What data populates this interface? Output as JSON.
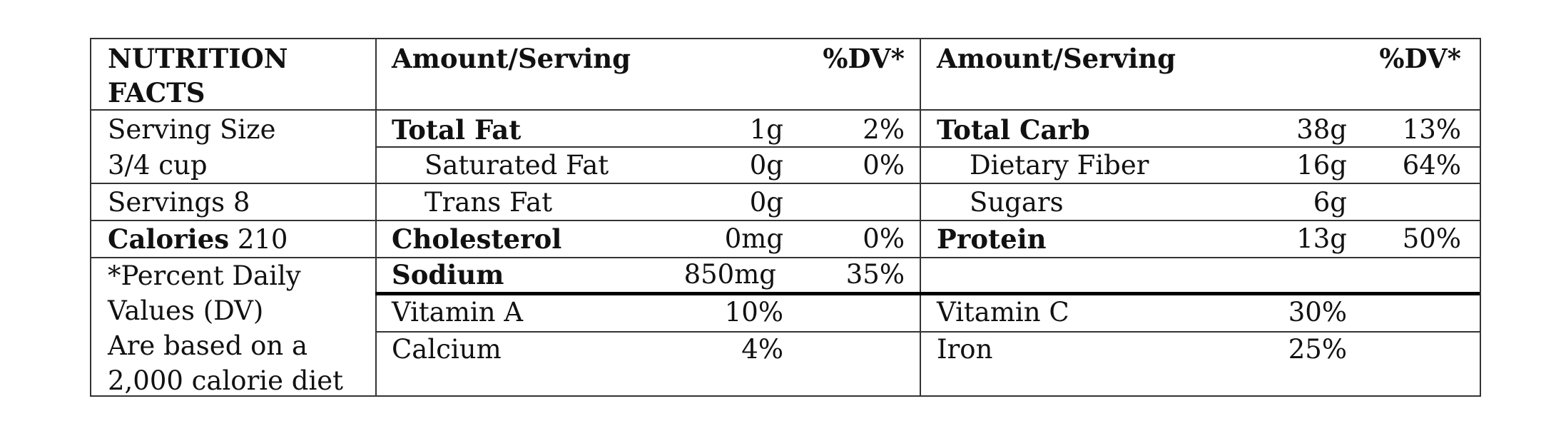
{
  "title_line1": "NUTRITION",
  "title_line2": "FACTS",
  "header": {
    "amount_serving_left": "Amount/Serving",
    "dv_left": "%DV*",
    "amount_serving_right": "Amount/Serving",
    "dv_right": "%DV*"
  },
  "serving_size_line1": "Serving Size",
  "serving_size_line2": "3/4 cup",
  "servings": "Servings 8",
  "calories_label": "Calories",
  "calories_value": "210",
  "footnote": [
    "*Percent Daily",
    "Values (DV)",
    "Are based on a",
    "2,000 calorie diet"
  ],
  "left_nutrients": [
    {
      "name": "Total Fat",
      "amount": "1g",
      "dv": "2%"
    },
    {
      "name": "Saturated Fat",
      "amount": "0g",
      "dv": "0%"
    },
    {
      "name": "Trans Fat",
      "amount": "0g",
      "dv": ""
    },
    {
      "name": "Cholesterol",
      "amount": "0mg",
      "dv": "0%"
    },
    {
      "name": "Sodium",
      "amount": "850mg",
      "dv": "35%"
    }
  ],
  "right_nutrients": [
    {
      "name": "Total Carb",
      "amount": "38g",
      "dv": "13%"
    },
    {
      "name": "Dietary Fiber",
      "amount": "16g",
      "dv": "64%"
    },
    {
      "name": "Sugars",
      "amount": "6g",
      "dv": ""
    },
    {
      "name": "Protein",
      "amount": "13g",
      "dv": "50%"
    }
  ],
  "vitamins_left": [
    {
      "name": "Vitamin A",
      "value": "10%"
    },
    {
      "name": "Calcium",
      "value": "4%"
    }
  ],
  "vitamins_right": [
    {
      "name": "Vitamin C",
      "value": "30%"
    },
    {
      "name": "Iron",
      "value": "25%"
    }
  ]
}
